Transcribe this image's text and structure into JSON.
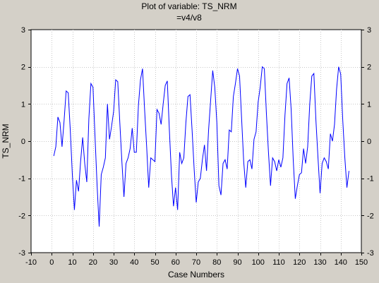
{
  "chart_data": {
    "type": "line",
    "title": "Plot of variable: TS_NRM",
    "subtitle": "=v4/v8",
    "xlabel": "Case Numbers",
    "ylabel": "TS_NRM",
    "xlim": [
      -10,
      150
    ],
    "ylim": [
      -3,
      3
    ],
    "xticks": [
      -10,
      0,
      10,
      20,
      30,
      40,
      50,
      60,
      70,
      80,
      90,
      100,
      110,
      120,
      130,
      140,
      150
    ],
    "yticks": [
      -3,
      -2,
      -1,
      0,
      1,
      2,
      3
    ],
    "grid": true,
    "line_color": "#0000ff",
    "series": [
      {
        "x": [
          1,
          2,
          3,
          4,
          5,
          6,
          7,
          8,
          9,
          10,
          11,
          12,
          13,
          14,
          15,
          16,
          17,
          18,
          19,
          20,
          21,
          22,
          23,
          24,
          25,
          26,
          27,
          28,
          29,
          30,
          31,
          32,
          33,
          34,
          35,
          36,
          37,
          38,
          39,
          40,
          41,
          42,
          43,
          44,
          45,
          46,
          47,
          48,
          49,
          50,
          51,
          52,
          53,
          54,
          55,
          56,
          57,
          58,
          59,
          60,
          61,
          62,
          63,
          64,
          65,
          66,
          67,
          68,
          69,
          70,
          71,
          72,
          73,
          74,
          75,
          76,
          77,
          78,
          79,
          80,
          81,
          82,
          83,
          84,
          85,
          86,
          87,
          88,
          89,
          90,
          91,
          92,
          93,
          94,
          95,
          96,
          97,
          98,
          99,
          100,
          101,
          102,
          103,
          104,
          105,
          106,
          107,
          108,
          109,
          110,
          111,
          112,
          113,
          114,
          115,
          116,
          117,
          118,
          119,
          120,
          121,
          122,
          123,
          124,
          125,
          126,
          127,
          128,
          129,
          130,
          131,
          132,
          133,
          134,
          135,
          136,
          137,
          138,
          139,
          140,
          141,
          142,
          143,
          144
        ],
        "values": [
          -0.4,
          -0.15,
          0.65,
          0.5,
          -0.15,
          0.55,
          1.35,
          1.3,
          0.3,
          -0.9,
          -1.85,
          -1.05,
          -1.35,
          -0.55,
          0.1,
          -0.6,
          -1.1,
          0.6,
          1.55,
          1.45,
          0.1,
          -1.2,
          -2.3,
          -0.9,
          -0.7,
          -0.45,
          1.0,
          0.05,
          0.4,
          0.8,
          1.65,
          1.6,
          0.5,
          -0.55,
          -1.5,
          -0.6,
          -0.45,
          -0.2,
          0.35,
          -0.3,
          -0.3,
          0.95,
          1.65,
          1.95,
          0.85,
          -0.15,
          -1.25,
          -0.45,
          -0.5,
          -0.55,
          0.85,
          0.75,
          0.45,
          1.0,
          1.5,
          1.62,
          0.3,
          -0.9,
          -1.75,
          -1.25,
          -1.85,
          -0.3,
          -0.6,
          -0.45,
          0.5,
          1.2,
          1.25,
          0.3,
          -0.75,
          -1.65,
          -1.1,
          -1.0,
          -0.5,
          -0.1,
          -0.8,
          0.3,
          1.1,
          1.9,
          1.45,
          0.5,
          -1.2,
          -1.45,
          -0.6,
          -0.5,
          -0.75,
          0.3,
          0.25,
          1.2,
          1.55,
          1.95,
          1.75,
          0.6,
          -0.55,
          -1.25,
          -0.55,
          -0.5,
          -0.75,
          0.05,
          0.25,
          1.05,
          1.45,
          2.0,
          1.95,
          0.75,
          -0.3,
          -1.2,
          -0.45,
          -0.55,
          -0.8,
          -0.5,
          -0.7,
          -0.45,
          0.7,
          1.55,
          1.7,
          0.85,
          -0.5,
          -1.55,
          -1.2,
          -0.9,
          -0.85,
          -0.2,
          -0.6,
          -0.15,
          1.0,
          1.75,
          1.82,
          0.55,
          -0.45,
          -1.4,
          -0.6,
          -0.45,
          -0.55,
          -0.75,
          0.2,
          0.0,
          0.45,
          1.4,
          2.0,
          1.8,
          0.55,
          -0.45,
          -1.25,
          -0.8
        ]
      }
    ]
  }
}
